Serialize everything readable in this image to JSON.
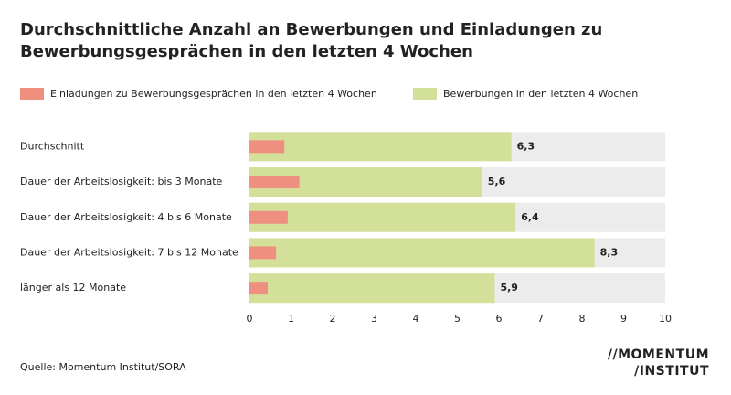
{
  "chart_data": {
    "type": "bar",
    "orientation": "horizontal",
    "title": [
      "Durchschnittliche Anzahl an Bewerbungen und Einladungen zu",
      "Bewerbungsgesprächen in den letzten 4 Wochen"
    ],
    "categories": [
      "Durchschnitt",
      "Dauer der Arbeitslosigkeit: bis 3 Monate",
      "Dauer der Arbeitslosigkeit: 4 bis 6 Monate",
      "Dauer der Arbeitslosigkeit: 7 bis 12 Monate",
      "länger als 12 Monate"
    ],
    "series": [
      {
        "name": "Bewerbungen in den letzten 4 Wochen",
        "color": "#d3e09a",
        "values": [
          6.3,
          5.6,
          6.4,
          8.3,
          5.9
        ],
        "value_labels": [
          "6,3",
          "5,6",
          "6,4",
          "8,3",
          "5,9"
        ]
      },
      {
        "name": "Einladungen zu Bewerbungsgesprächen in den letzten 4 Wochen",
        "color": "#ef8f7f",
        "values": [
          0.84,
          1.2,
          0.92,
          0.64,
          0.44
        ]
      }
    ],
    "legend_order": [
      1,
      0
    ],
    "track_color": "#ececec",
    "xlim": [
      0,
      10
    ],
    "xticks": [
      0,
      1,
      2,
      3,
      4,
      5,
      6,
      7,
      8,
      9,
      10
    ],
    "source": "Quelle: Momentum Institut/SORA",
    "logo": [
      "//MOMENTUM",
      "/INSTITUT"
    ]
  }
}
